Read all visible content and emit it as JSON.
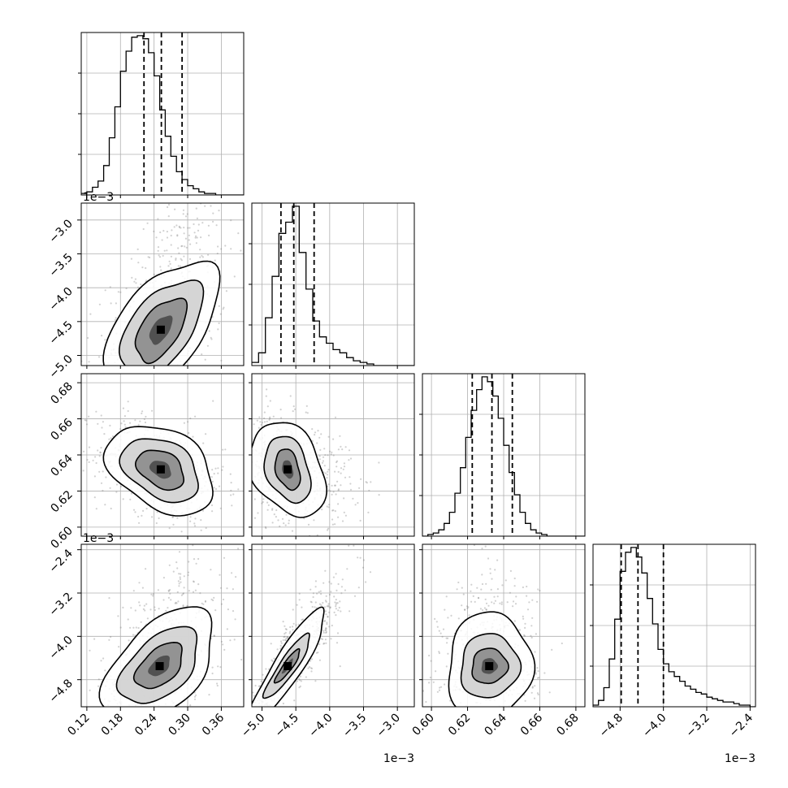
{
  "chart_data": {
    "type": "corner",
    "grid": true,
    "variables": [
      {
        "range": [
          0.11,
          0.4
        ],
        "ticks": [
          0.12,
          0.18,
          0.24,
          0.3,
          0.36
        ],
        "tick_labels": [
          "0.12",
          "0.18",
          "0.24",
          "0.30",
          "0.36"
        ],
        "offset_label": "",
        "quantiles": [
          0.222,
          0.253,
          0.29
        ],
        "hist_bins": [
          0.11,
          0.12,
          0.13,
          0.14,
          0.15,
          0.16,
          0.17,
          0.18,
          0.19,
          0.2,
          0.21,
          0.22,
          0.23,
          0.24,
          0.25,
          0.26,
          0.27,
          0.28,
          0.29,
          0.3,
          0.31,
          0.32,
          0.33,
          0.34,
          0.35,
          0.36,
          0.37,
          0.38,
          0.39,
          0.4
        ],
        "hist_counts": [
          1,
          2,
          5,
          9,
          19,
          37,
          57,
          80,
          93,
          102,
          103,
          101,
          92,
          77,
          55,
          38,
          25,
          15,
          10,
          6,
          4,
          2,
          1,
          1,
          0,
          0,
          0,
          0,
          0
        ]
      },
      {
        "range": [
          -5.15,
          -2.75
        ],
        "ticks": [
          -5.0,
          -4.5,
          -4.0,
          -3.5,
          -3.0
        ],
        "tick_labels": [
          "−5.0",
          "−4.5",
          "−4.0",
          "−3.5",
          "−3.0"
        ],
        "offset_label": "1e−3",
        "quantiles": [
          -4.72,
          -4.53,
          -4.23
        ],
        "hist_bins": [
          -5.15,
          -5.05,
          -4.95,
          -4.85,
          -4.75,
          -4.65,
          -4.55,
          -4.45,
          -4.35,
          -4.25,
          -4.15,
          -4.05,
          -3.95,
          -3.85,
          -3.75,
          -3.65,
          -3.55,
          -3.45,
          -3.35,
          -3.25,
          -3.15,
          -3.05,
          -2.95,
          -2.85,
          -2.75
        ],
        "hist_counts": [
          2,
          8,
          30,
          56,
          83,
          90,
          100,
          71,
          48,
          28,
          18,
          14,
          10,
          8,
          5,
          3,
          2,
          1,
          0,
          0,
          0,
          0,
          0,
          0
        ]
      },
      {
        "range": [
          0.595,
          0.685
        ],
        "ticks": [
          0.6,
          0.62,
          0.64,
          0.66,
          0.68
        ],
        "tick_labels": [
          "0.60",
          "0.62",
          "0.64",
          "0.66",
          "0.68"
        ],
        "offset_label": "",
        "quantiles": [
          0.6226,
          0.6335,
          0.6448
        ],
        "hist_bins": [
          0.595,
          0.598,
          0.601,
          0.604,
          0.607,
          0.61,
          0.613,
          0.616,
          0.619,
          0.622,
          0.625,
          0.628,
          0.631,
          0.634,
          0.637,
          0.64,
          0.643,
          0.646,
          0.649,
          0.652,
          0.655,
          0.658,
          0.661,
          0.664,
          0.667,
          0.67,
          0.673,
          0.676,
          0.679,
          0.682,
          0.685
        ],
        "hist_counts": [
          0,
          1,
          2,
          4,
          8,
          15,
          27,
          43,
          62,
          79,
          92,
          100,
          97,
          88,
          74,
          57,
          40,
          26,
          15,
          8,
          4,
          2,
          1,
          0,
          0,
          0,
          0,
          0,
          0,
          0
        ]
      },
      {
        "range": [
          -5.3,
          -2.3
        ],
        "ticks": [
          -4.8,
          -4.0,
          -3.2,
          -2.4
        ],
        "tick_labels": [
          "−4.8",
          "−4.0",
          "−3.2",
          "−2.4"
        ],
        "offset_label": "1e−3",
        "quantiles": [
          -4.78,
          -4.47,
          -4.0
        ],
        "hist_bins": [
          -5.3,
          -5.2,
          -5.1,
          -5.0,
          -4.9,
          -4.8,
          -4.7,
          -4.6,
          -4.5,
          -4.4,
          -4.3,
          -4.2,
          -4.1,
          -4.0,
          -3.9,
          -3.8,
          -3.7,
          -3.6,
          -3.5,
          -3.4,
          -3.3,
          -3.2,
          -3.1,
          -3.0,
          -2.9,
          -2.8,
          -2.7,
          -2.6,
          -2.5,
          -2.4,
          -2.3
        ],
        "hist_counts": [
          1,
          4,
          12,
          30,
          55,
          85,
          97,
          100,
          94,
          84,
          68,
          52,
          36,
          27,
          22,
          19,
          16,
          13,
          11,
          9,
          8,
          6,
          5,
          4,
          3,
          3,
          2,
          1,
          1,
          0
        ]
      }
    ],
    "pairs": [
      {
        "x": 0,
        "y": 1,
        "center": [
          0.252,
          -4.62
        ],
        "correlation": 0.55,
        "levels": [
          {
            "sx": 0.032,
            "sy": 0.33
          },
          {
            "sx": 0.052,
            "sy": 0.52
          },
          {
            "sx": 0.072,
            "sy": 0.72
          }
        ]
      },
      {
        "x": 0,
        "y": 2,
        "center": [
          0.252,
          0.632
        ],
        "correlation": -0.35,
        "levels": [
          {
            "sx": 0.03,
            "sy": 0.0078
          },
          {
            "sx": 0.049,
            "sy": 0.0125
          },
          {
            "sx": 0.068,
            "sy": 0.0175
          }
        ]
      },
      {
        "x": 1,
        "y": 2,
        "center": [
          -4.62,
          0.632
        ],
        "correlation": -0.3,
        "levels": [
          {
            "sx": 0.13,
            "sy": 0.008
          },
          {
            "sx": 0.24,
            "sy": 0.013
          },
          {
            "sx": 0.4,
            "sy": 0.0185
          }
        ]
      },
      {
        "x": 0,
        "y": 3,
        "center": [
          0.25,
          -4.55
        ],
        "correlation": 0.5,
        "levels": [
          {
            "sx": 0.03,
            "sy": 0.3
          },
          {
            "sx": 0.05,
            "sy": 0.5
          },
          {
            "sx": 0.07,
            "sy": 0.75
          }
        ]
      },
      {
        "x": 1,
        "y": 3,
        "center": [
          -4.62,
          -4.55
        ],
        "correlation": 0.9,
        "levels": [
          {
            "sx": 0.13,
            "sy": 0.22
          },
          {
            "sx": 0.24,
            "sy": 0.42
          },
          {
            "sx": 0.4,
            "sy": 0.75
          }
        ]
      },
      {
        "x": 2,
        "y": 3,
        "center": [
          0.632,
          -4.55
        ],
        "correlation": 0.05,
        "levels": [
          {
            "sx": 0.007,
            "sy": 0.23
          },
          {
            "sx": 0.0115,
            "sy": 0.42
          },
          {
            "sx": 0.0165,
            "sy": 0.7
          }
        ]
      }
    ]
  }
}
